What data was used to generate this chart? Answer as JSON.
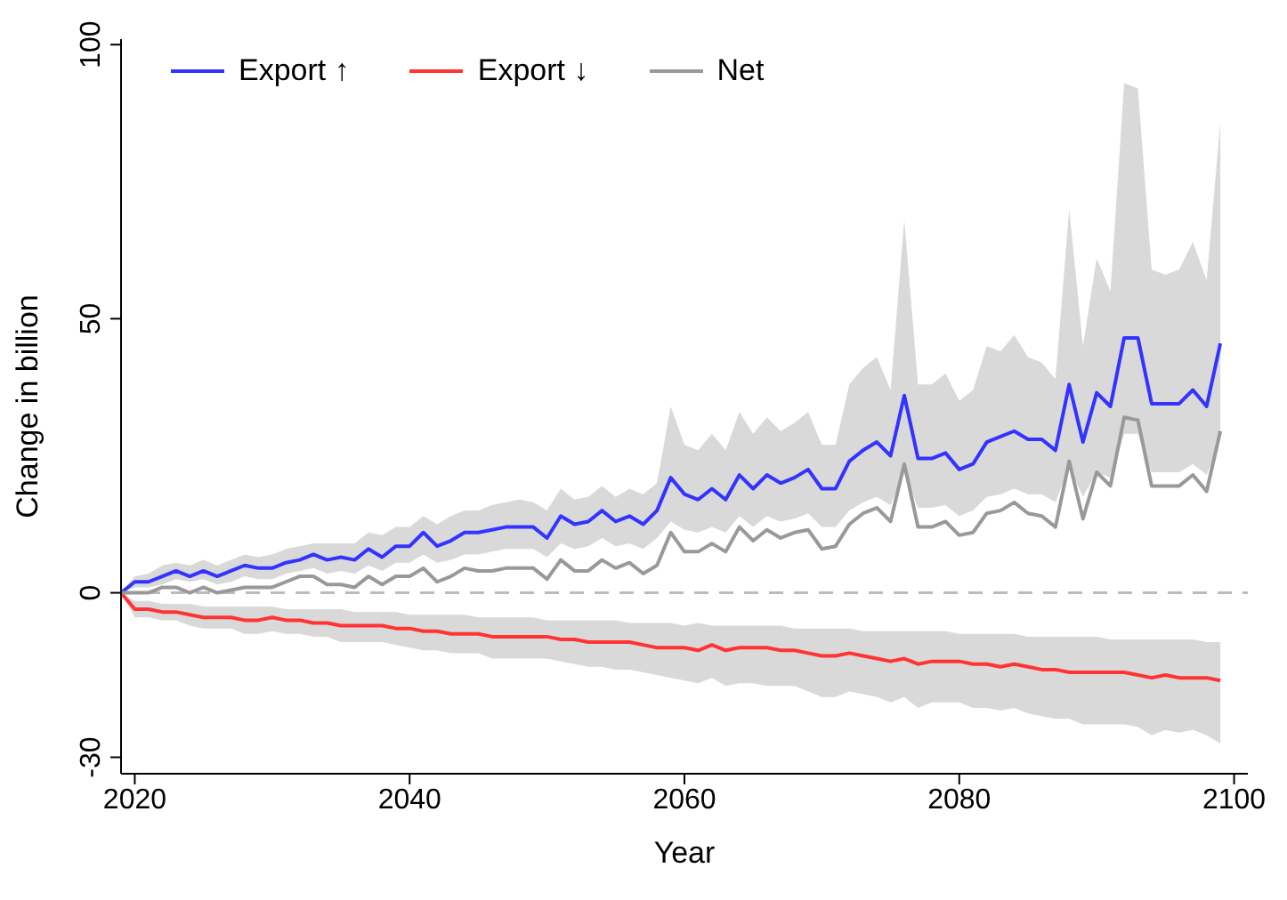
{
  "chart_data": {
    "type": "line",
    "xlabel": "Year",
    "ylabel": "Change in billion",
    "x": [
      2019,
      2020,
      2021,
      2022,
      2023,
      2024,
      2025,
      2026,
      2027,
      2028,
      2029,
      2030,
      2031,
      2032,
      2033,
      2034,
      2035,
      2036,
      2037,
      2038,
      2039,
      2040,
      2041,
      2042,
      2043,
      2044,
      2045,
      2046,
      2047,
      2048,
      2049,
      2050,
      2051,
      2052,
      2053,
      2054,
      2055,
      2056,
      2057,
      2058,
      2059,
      2060,
      2061,
      2062,
      2063,
      2064,
      2065,
      2066,
      2067,
      2068,
      2069,
      2070,
      2071,
      2072,
      2073,
      2074,
      2075,
      2076,
      2077,
      2078,
      2079,
      2080,
      2081,
      2082,
      2083,
      2084,
      2085,
      2086,
      2087,
      2088,
      2089,
      2090,
      2091,
      2092,
      2093,
      2094,
      2095,
      2096,
      2097,
      2098,
      2099
    ],
    "xlim": [
      2019,
      2101
    ],
    "xticks": [
      2020,
      2040,
      2060,
      2080,
      2100
    ],
    "ylim": [
      -33,
      101
    ],
    "yticks": [
      -30,
      0,
      50,
      100
    ],
    "series": [
      {
        "name": "Export ↑",
        "color": "#3333ff",
        "values": [
          0,
          2,
          2,
          3,
          4,
          3,
          4,
          3,
          4,
          5,
          4.5,
          4.5,
          5.5,
          6,
          7,
          6,
          6.5,
          6,
          8,
          6.5,
          8.5,
          8.5,
          11,
          8.5,
          9.5,
          11,
          11,
          11.5,
          12,
          12,
          12,
          10,
          14,
          12.5,
          13,
          15,
          13,
          14,
          12.5,
          15,
          21,
          18,
          17,
          19,
          17,
          21.5,
          19,
          21.5,
          20,
          21,
          22.5,
          19,
          19,
          24,
          26,
          27.5,
          25,
          36,
          24.5,
          24.5,
          25.5,
          22.5,
          23.5,
          27.5,
          28.5,
          29.5,
          28,
          28,
          26,
          38,
          27.5,
          36.5,
          34,
          46.5,
          46.5,
          34.5,
          34.5,
          34.5,
          37,
          34,
          45.5
        ],
        "lower": [
          0,
          1,
          1,
          1.5,
          2.5,
          2,
          2.5,
          1.5,
          2,
          3,
          2.5,
          2.5,
          3.5,
          4,
          4.5,
          3.5,
          4,
          3.5,
          5,
          4,
          5.5,
          5.5,
          7,
          5.5,
          6,
          7,
          7,
          7.5,
          8,
          8,
          8,
          6.5,
          9,
          8,
          8.5,
          10,
          8.5,
          9,
          8,
          10,
          13,
          11.5,
          11,
          12,
          11,
          14,
          12,
          14,
          13,
          13.5,
          14.5,
          12,
          12,
          15,
          16.5,
          17.5,
          16,
          22,
          15.5,
          15.5,
          16,
          14,
          15,
          17.5,
          18,
          19,
          18,
          18,
          16.5,
          23,
          17.5,
          22,
          21,
          29,
          29,
          22,
          22,
          22,
          23.5,
          21.5,
          28
        ],
        "upper": [
          0,
          3,
          3.5,
          5,
          5.5,
          5,
          6,
          5,
          6,
          7,
          6.5,
          7,
          8,
          8.5,
          9,
          9,
          9,
          9,
          11,
          10.5,
          12,
          12,
          14,
          12.5,
          14,
          15,
          15,
          16,
          16.5,
          17,
          16.5,
          15,
          19,
          17,
          17.5,
          19.5,
          17.5,
          19,
          18,
          20,
          34,
          27,
          26,
          29,
          26,
          33,
          29,
          32,
          29.5,
          31,
          33,
          27,
          27,
          38,
          41,
          43,
          37,
          68,
          38,
          38,
          40,
          35,
          37,
          45,
          44,
          47,
          43,
          42,
          39,
          70,
          45,
          61,
          55,
          93,
          92,
          59,
          58,
          59,
          64,
          57,
          86
        ]
      },
      {
        "name": "Export ↓",
        "color": "#ff3333",
        "values": [
          0,
          -3,
          -3,
          -3.5,
          -3.5,
          -4,
          -4.5,
          -4.5,
          -4.5,
          -5,
          -5,
          -4.5,
          -5,
          -5,
          -5.5,
          -5.5,
          -6,
          -6,
          -6,
          -6,
          -6.5,
          -6.5,
          -7,
          -7,
          -7.5,
          -7.5,
          -7.5,
          -8,
          -8,
          -8,
          -8,
          -8,
          -8.5,
          -8.5,
          -9,
          -9,
          -9,
          -9,
          -9.5,
          -10,
          -10,
          -10,
          -10.5,
          -9.5,
          -10.5,
          -10,
          -10,
          -10,
          -10.5,
          -10.5,
          -11,
          -11.5,
          -11.5,
          -11,
          -11.5,
          -12,
          -12.5,
          -12,
          -13,
          -12.5,
          -12.5,
          -12.5,
          -13,
          -13,
          -13.5,
          -13,
          -13.5,
          -14,
          -14,
          -14.5,
          -14.5,
          -14.5,
          -14.5,
          -14.5,
          -15,
          -15.5,
          -15,
          -15.5,
          -15.5,
          -15.5,
          -16
        ],
        "lower": [
          0,
          -4.5,
          -4.5,
          -5,
          -5,
          -6,
          -6.5,
          -6.5,
          -6.5,
          -7.5,
          -7.5,
          -7,
          -7.5,
          -7.5,
          -8,
          -8,
          -9,
          -9,
          -9,
          -9,
          -9.5,
          -10,
          -10.5,
          -10.5,
          -11,
          -11,
          -11,
          -12,
          -12,
          -12,
          -12,
          -12,
          -12.5,
          -13,
          -13.5,
          -13.5,
          -14,
          -14,
          -14.5,
          -15,
          -15.5,
          -16,
          -16.5,
          -15.5,
          -17,
          -16.5,
          -16.5,
          -17,
          -17,
          -17,
          -18,
          -19,
          -19,
          -18,
          -18.5,
          -19,
          -20,
          -19,
          -21,
          -20,
          -20,
          -20,
          -21,
          -21,
          -21.5,
          -21,
          -22,
          -22.5,
          -23,
          -23,
          -24,
          -24,
          -24,
          -24,
          -24.5,
          -26,
          -25,
          -25.5,
          -25,
          -26,
          -27.5
        ],
        "upper": [
          0,
          -1.5,
          -1.5,
          -2,
          -2,
          -2,
          -2.5,
          -2.5,
          -2.5,
          -2.5,
          -2.5,
          -2.5,
          -3,
          -3,
          -3,
          -3,
          -3,
          -3.5,
          -3.5,
          -3.5,
          -3.5,
          -4,
          -4,
          -4,
          -4,
          -4,
          -4.5,
          -4.5,
          -4.5,
          -4.5,
          -4.5,
          -5,
          -5,
          -5,
          -5,
          -5,
          -5,
          -5.5,
          -5.5,
          -5.5,
          -5.5,
          -6,
          -5.5,
          -6,
          -6,
          -6,
          -6,
          -6,
          -6,
          -6.5,
          -6.5,
          -6.5,
          -6.5,
          -6.5,
          -7,
          -7,
          -7,
          -7,
          -7,
          -7,
          -7,
          -7.5,
          -7.5,
          -7.5,
          -7.5,
          -7.5,
          -8,
          -8,
          -8,
          -8,
          -8,
          -8,
          -8.5,
          -8.5,
          -8.5,
          -8.5,
          -8.5,
          -8.5,
          -8.5,
          -9,
          -9
        ]
      },
      {
        "name": "Net",
        "color": "#999999",
        "values": [
          0,
          0,
          0,
          1,
          1,
          0,
          1,
          0,
          0.5,
          1,
          1,
          1,
          2,
          3,
          3,
          1.5,
          1.5,
          1,
          3,
          1.5,
          3,
          3,
          4.5,
          2,
          3,
          4.5,
          4,
          4,
          4.5,
          4.5,
          4.5,
          2.5,
          6,
          4,
          4,
          6,
          4.5,
          5.5,
          3.5,
          5,
          11,
          7.5,
          7.5,
          9,
          7.5,
          12,
          9.5,
          11.5,
          10,
          11,
          11.5,
          8,
          8.5,
          12.5,
          14.5,
          15.5,
          13,
          23.5,
          12,
          12,
          13,
          10.5,
          11,
          14.5,
          15,
          16.5,
          14.5,
          14,
          12,
          24,
          13.5,
          22,
          19.5,
          32,
          31.5,
          19.5,
          19.5,
          19.5,
          21.5,
          18.5,
          29.5
        ]
      }
    ],
    "ref_lines": [
      {
        "axis": "y",
        "value": 0,
        "color": "#bbbbbb",
        "line_style": "dashed"
      }
    ],
    "grid": false,
    "legend": "top left",
    "marker": "none",
    "line_style": "solid"
  }
}
